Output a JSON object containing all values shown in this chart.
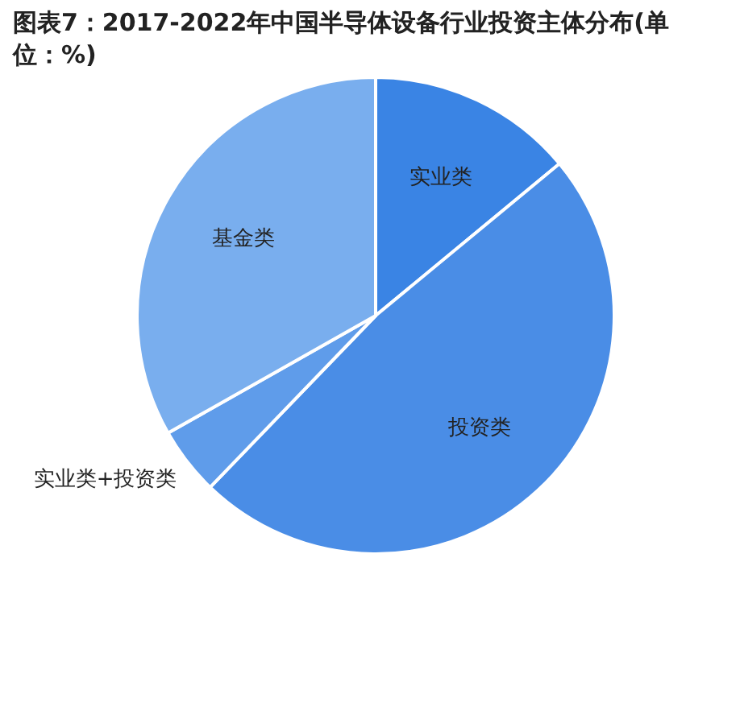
{
  "chart_data": {
    "type": "pie",
    "title": "图表7：2017-2022年中国半导体设备行业投资主体分布(单位：%)",
    "categories": [
      "实业类",
      "投资类",
      "实业类+投资类",
      "基金类"
    ],
    "values": [
      14,
      48.2,
      4.6,
      33.2
    ],
    "colors": [
      "#3a84e4",
      "#4a8de6",
      "#5f9cea",
      "#79aeee"
    ]
  }
}
